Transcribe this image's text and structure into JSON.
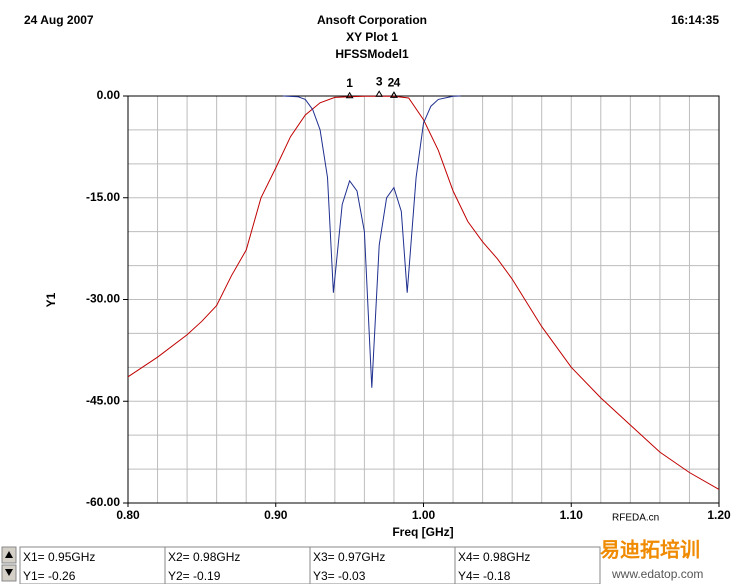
{
  "header": {
    "date": "24 Aug 2007",
    "company": "Ansoft Corporation",
    "time": "16:14:35"
  },
  "chart_data": {
    "type": "line",
    "title": "XY Plot 1",
    "subtitle": "HFSSModel1",
    "x_label": "Freq [GHz]",
    "y_label": "Y1",
    "xlim": [
      0.8,
      1.2
    ],
    "ylim": [
      -60,
      0
    ],
    "xticks": [
      {
        "value": 0.8,
        "label": "0.80"
      },
      {
        "value": 0.9,
        "label": "0.90"
      },
      {
        "value": 1.0,
        "label": "1.00"
      },
      {
        "value": 1.1,
        "label": "1.10"
      },
      {
        "value": 1.2,
        "label": "1.20"
      }
    ],
    "yticks": [
      {
        "value": 0,
        "label": "0.00"
      },
      {
        "value": -15,
        "label": "-15.00"
      },
      {
        "value": -30,
        "label": "-30.00"
      },
      {
        "value": -45,
        "label": "-45.00"
      },
      {
        "value": -60,
        "label": "-60.00"
      }
    ],
    "x_grid": [
      0.8,
      0.82,
      0.84,
      0.86,
      0.88,
      0.9,
      0.92,
      0.94,
      0.96,
      0.98,
      1.0,
      1.02,
      1.04,
      1.06,
      1.08,
      1.1,
      1.12,
      1.14,
      1.16,
      1.18,
      1.2
    ],
    "y_grid": [
      0,
      -5,
      -10,
      -15,
      -20,
      -25,
      -30,
      -35,
      -40,
      -45,
      -50,
      -55,
      -60
    ],
    "grid": true,
    "series": [
      {
        "color": "#c00000",
        "x": [
          0.8,
          0.82,
          0.84,
          0.85,
          0.86,
          0.87,
          0.88,
          0.89,
          0.9,
          0.91,
          0.92,
          0.93,
          0.94,
          0.95,
          0.96,
          0.97,
          0.98,
          0.99,
          1.0,
          1.01,
          1.02,
          1.03,
          1.04,
          1.05,
          1.06,
          1.08,
          1.1,
          1.12,
          1.14,
          1.16,
          1.18,
          1.2
        ],
        "values": [
          -41.4,
          -38.5,
          -35.2,
          -33.2,
          -30.9,
          -26.5,
          -22.7,
          -15,
          -10.6,
          -6,
          -2.8,
          -1,
          -0.2,
          -0.1,
          -0.05,
          -0.05,
          -0.05,
          -0.3,
          -3.5,
          -8,
          -14,
          -18.5,
          -21.5,
          -24,
          -27,
          -34,
          -40,
          -44.5,
          -48.5,
          -52.5,
          -55.5,
          -58
        ]
      },
      {
        "color": "#1f2f8f",
        "x": [
          0.905,
          0.915,
          0.92,
          0.925,
          0.93,
          0.935,
          0.939,
          0.945,
          0.95,
          0.955,
          0.96,
          0.965,
          0.97,
          0.975,
          0.98,
          0.985,
          0.989,
          0.995,
          1.0,
          1.005,
          1.01,
          1.02,
          1.025
        ],
        "values": [
          0,
          -0.1,
          -0.5,
          -2,
          -5,
          -12,
          -29,
          -16,
          -12.5,
          -14,
          -20,
          -43,
          -22,
          -15,
          -13.5,
          -17,
          -29,
          -12,
          -4,
          -1.5,
          -0.5,
          -0.05,
          0
        ]
      }
    ],
    "markers": [
      {
        "label": "1",
        "x": 0.95,
        "y": -0.26,
        "x_text": "X1= 0.95GHz",
        "y_text": "Y1= -0.26"
      },
      {
        "label": "2",
        "x": 0.98,
        "y": -0.19,
        "x_text": "X2= 0.98GHz",
        "y_text": "Y2= -0.19"
      },
      {
        "label": "3",
        "x": 0.97,
        "y": -0.03,
        "x_text": "X3= 0.97GHz",
        "y_text": "Y3= -0.03"
      },
      {
        "label": "4",
        "x": 0.98,
        "y": -0.18,
        "x_text": "X4= 0.98GHz",
        "y_text": "Y4= -0.18"
      }
    ]
  },
  "watermark": {
    "brand": "易迪拓培训",
    "url": "www.edatop.com",
    "site": "RFEDA.cn"
  }
}
